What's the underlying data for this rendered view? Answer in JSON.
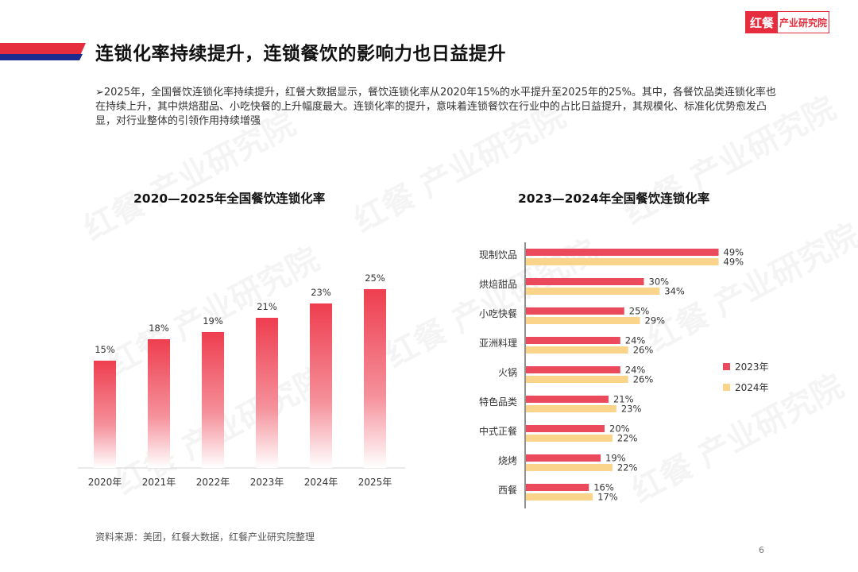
{
  "logo": {
    "mark": "红餐",
    "text": "产业研究院"
  },
  "page_title": "连锁化率持续提升，连锁餐饮的影响力也日益提升",
  "summary": "➢2025年，全国餐饮连锁化率持续提升，红餐大数据显示，餐饮连锁化率从2020年15%的水平提升至2025年的25%。其中，各餐饮品类连锁化率也在持续上升，其中烘焙甜品、小吃快餐的上升幅度最大。连锁化率的提升，意味着连锁餐饮在行业中的占比日益提升，其规模化、标准化优势愈发凸显，对行业整体的引领作用持续增强",
  "colors": {
    "accent": "#e52d3d",
    "bar_top": "#ee3e4f",
    "series_2023": "#ea4a5c",
    "series_2024": "#fad48a"
  },
  "chart_data": [
    {
      "type": "bar",
      "title": "2020—2025年全国餐饮连锁化率",
      "categories": [
        "2020年",
        "2021年",
        "2022年",
        "2023年",
        "2024年",
        "2025年"
      ],
      "values": [
        15,
        18,
        19,
        21,
        23,
        25
      ],
      "value_labels": [
        "15%",
        "18%",
        "19%",
        "21%",
        "23%",
        "25%"
      ],
      "grid": false
    },
    {
      "type": "bar",
      "orientation": "horizontal",
      "title": "2023—2024年全国餐饮连锁化率",
      "categories": [
        "现制饮品",
        "烘焙甜品",
        "小吃快餐",
        "亚洲料理",
        "火锅",
        "特色品类",
        "中式正餐",
        "烧烤",
        "西餐"
      ],
      "series": [
        {
          "name": "2023年",
          "values": [
            49,
            30,
            25,
            24,
            24,
            21,
            20,
            19,
            16
          ]
        },
        {
          "name": "2024年",
          "values": [
            49,
            34,
            29,
            26,
            26,
            23,
            22,
            22,
            17
          ]
        }
      ],
      "legend": "right",
      "grid": false
    }
  ],
  "watermark_text": "红餐 产业研究院",
  "source": "资料来源：美团，红餐大数据，红餐产业研究院整理",
  "page_number": "6"
}
